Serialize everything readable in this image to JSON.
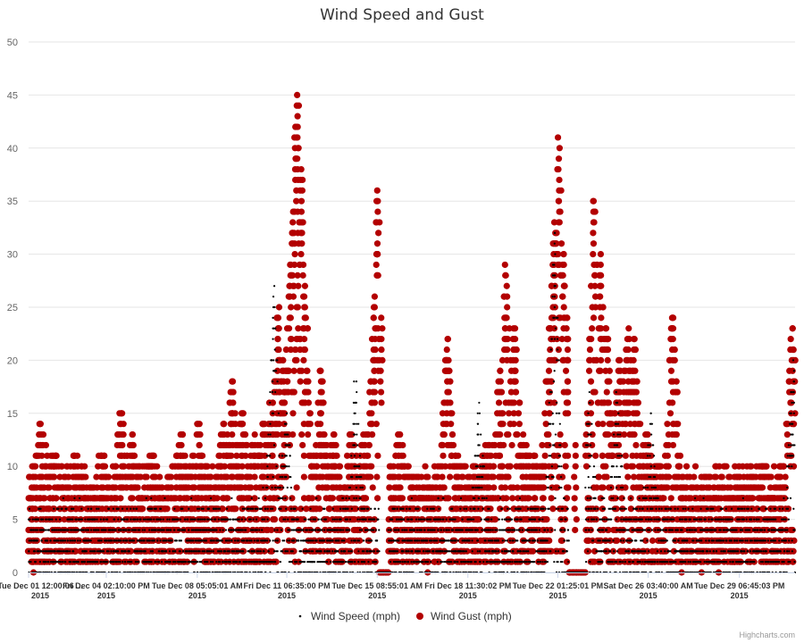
{
  "chart_data": {
    "type": "scatter",
    "title": "Wind Speed and Gust",
    "xlabel": "",
    "ylabel": "",
    "ylim": [
      0,
      50
    ],
    "yticks": [
      0,
      5,
      10,
      15,
      20,
      25,
      30,
      35,
      40,
      45,
      50
    ],
    "x_tick_labels": [
      {
        "date": "2015-12-01T12:00:06",
        "label": "Tue Dec 01 12:00:06 ...",
        "year": "2015"
      },
      {
        "date": "2015-12-04T14:10:00",
        "label": "Fri Dec 04 02:10:00 PM",
        "year": "2015"
      },
      {
        "date": "2015-12-08T05:05:01",
        "label": "Tue Dec 08 05:05:01 AM",
        "year": "2015"
      },
      {
        "date": "2015-12-11T18:35:00",
        "label": "Fri Dec 11 06:35:00 PM",
        "year": "2015"
      },
      {
        "date": "2015-12-15T08:55:01",
        "label": "Tue Dec 15 08:55:01 AM",
        "year": "2015"
      },
      {
        "date": "2015-12-18T23:30:02",
        "label": "Fri Dec 18 11:30:02 PM",
        "year": "2015"
      },
      {
        "date": "2015-12-22T13:25:01",
        "label": "Tue Dec 22 01:25:01 PM",
        "year": "2015"
      },
      {
        "date": "2015-12-26T03:40:00",
        "label": "Sat Dec 26 03:40:00 AM",
        "year": "2015"
      },
      {
        "date": "2015-12-29T18:45:03",
        "label": "Tue Dec 29 06:45:03 PM",
        "year": "2015"
      }
    ],
    "xlim": [
      "2015-12-01T12:00:06",
      "2015-12-31T23:55:00"
    ],
    "grid": true,
    "legend_position": "bottom-center",
    "series": [
      {
        "name": "Wind Speed (mph)",
        "marker": "dot",
        "color": "#000000",
        "typical_range": [
          0,
          8
        ],
        "peaks": [
          [
            "2015-12-11T06:00:00",
            27
          ],
          [
            "2015-12-11T18:00:00",
            15
          ],
          [
            "2015-12-14T12:00:00",
            18
          ],
          [
            "2015-12-19T10:00:00",
            16
          ],
          [
            "2015-12-22T10:00:00",
            32
          ],
          [
            "2015-12-23T19:00:00",
            17
          ],
          [
            "2015-12-24T22:00:00",
            17
          ],
          [
            "2015-12-26T06:00:00",
            15
          ],
          [
            "2015-12-31T22:00:00",
            20
          ]
        ]
      },
      {
        "name": "Wind Gust (mph)",
        "marker": "circle",
        "color": "#B30000",
        "typical_range": [
          0,
          12
        ],
        "peaks": [
          [
            "2015-12-01T16:00:00",
            8
          ],
          [
            "2015-12-02T00:00:00",
            14
          ],
          [
            "2015-12-02T12:00:00",
            11
          ],
          [
            "2015-12-03T08:00:00",
            11
          ],
          [
            "2015-12-04T10:00:00",
            11
          ],
          [
            "2015-12-05T04:00:00",
            15
          ],
          [
            "2015-12-05T14:00:00",
            13
          ],
          [
            "2015-12-06T10:00:00",
            11
          ],
          [
            "2015-12-07T14:00:00",
            13
          ],
          [
            "2015-12-08T06:00:00",
            14
          ],
          [
            "2015-12-09T06:00:00",
            14
          ],
          [
            "2015-12-09T14:00:00",
            18
          ],
          [
            "2015-12-10T00:00:00",
            15
          ],
          [
            "2015-12-10T12:00:00",
            13
          ],
          [
            "2015-12-10T21:00:00",
            14
          ],
          [
            "2015-12-11T04:00:00",
            16
          ],
          [
            "2015-12-11T10:00:00",
            25
          ],
          [
            "2015-12-11T16:00:00",
            20
          ],
          [
            "2015-12-11T22:00:00",
            29
          ],
          [
            "2015-12-12T01:00:00",
            34
          ],
          [
            "2015-12-12T03:00:00",
            42
          ],
          [
            "2015-12-12T05:00:00",
            45
          ],
          [
            "2015-12-12T08:00:00",
            38
          ],
          [
            "2015-12-12T11:00:00",
            28
          ],
          [
            "2015-12-13T03:00:00",
            19
          ],
          [
            "2015-12-13T15:00:00",
            13
          ],
          [
            "2015-12-14T08:00:00",
            13
          ],
          [
            "2015-12-14T20:00:00",
            13
          ],
          [
            "2015-12-15T06:00:00",
            25
          ],
          [
            "2015-12-15T09:00:00",
            36
          ],
          [
            "2015-12-15T13:00:00",
            24
          ],
          [
            "2015-12-16T06:00:00",
            13
          ],
          [
            "2015-12-16T18:00:00",
            9
          ],
          [
            "2015-12-17T10:00:00",
            8
          ],
          [
            "2015-12-18T04:00:00",
            22
          ],
          [
            "2015-12-18T12:00:00",
            11
          ],
          [
            "2015-12-19T06:00:00",
            10
          ],
          [
            "2015-12-19T18:00:00",
            12
          ],
          [
            "2015-12-20T06:00:00",
            19
          ],
          [
            "2015-12-20T12:00:00",
            29
          ],
          [
            "2015-12-20T20:00:00",
            23
          ],
          [
            "2015-12-21T04:00:00",
            13
          ],
          [
            "2015-12-21T14:00:00",
            11
          ],
          [
            "2015-12-22T00:00:00",
            10
          ],
          [
            "2015-12-22T06:00:00",
            23
          ],
          [
            "2015-12-22T10:00:00",
            33
          ],
          [
            "2015-12-22T14:00:00",
            41
          ],
          [
            "2015-12-22T18:00:00",
            30
          ],
          [
            "2015-12-22T22:00:00",
            24
          ],
          [
            "2015-12-23T06:00:00",
            12
          ],
          [
            "2015-12-24T00:00:00",
            35
          ],
          [
            "2015-12-24T06:00:00",
            30
          ],
          [
            "2015-12-24T12:00:00",
            23
          ],
          [
            "2015-12-25T00:00:00",
            20
          ],
          [
            "2015-12-25T08:00:00",
            23
          ],
          [
            "2015-12-25T14:00:00",
            22
          ],
          [
            "2015-12-26T02:00:00",
            13
          ],
          [
            "2015-12-26T12:00:00",
            10
          ],
          [
            "2015-12-27T03:00:00",
            24
          ],
          [
            "2015-12-27T12:00:00",
            8
          ],
          [
            "2015-12-28T06:00:00",
            6
          ],
          [
            "2015-12-29T00:00:00",
            7
          ],
          [
            "2015-12-29T18:00:00",
            9
          ],
          [
            "2015-12-30T06:00:00",
            9
          ],
          [
            "2015-12-30T18:00:00",
            10
          ],
          [
            "2015-12-31T10:00:00",
            10
          ],
          [
            "2015-12-31T21:00:00",
            23
          ]
        ]
      }
    ],
    "calm_runs": [
      [
        "2015-12-15T11:00:00",
        "2015-12-15T20:00:00"
      ],
      [
        "2015-12-23T00:00:00",
        "2015-12-23T16:00:00"
      ]
    ]
  },
  "credits": "Highcharts.com",
  "colors": {
    "grid": "#e6e6e6",
    "axis": "#ccd6eb",
    "speed": "#000000",
    "gust": "#B30000"
  }
}
